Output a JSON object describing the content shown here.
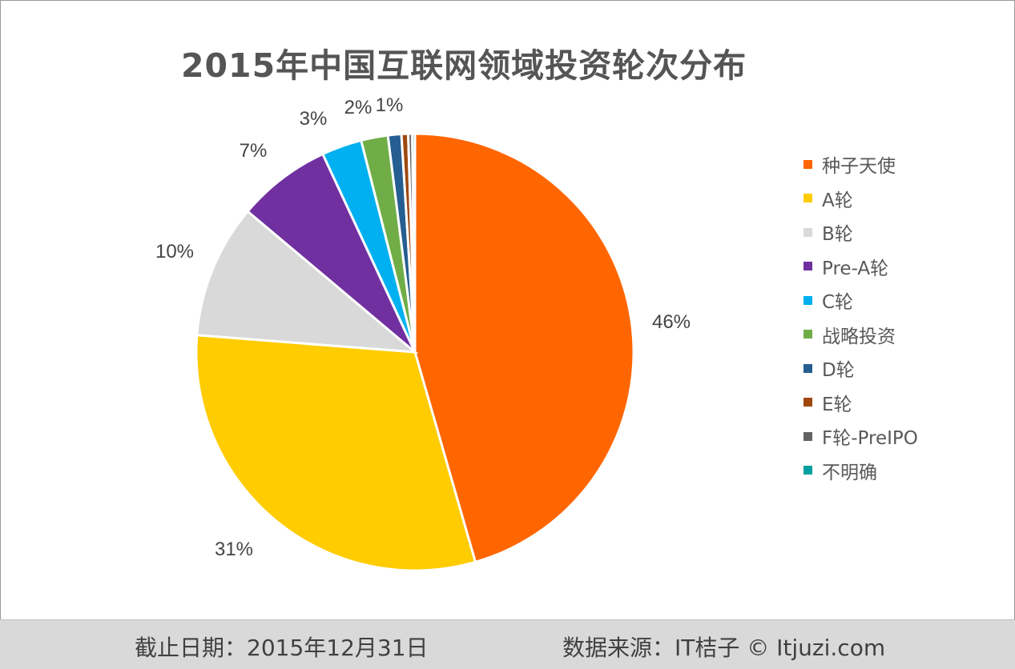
{
  "chart_data": {
    "type": "pie",
    "title": "2015年中国互联网领域投资轮次分布",
    "categories": [
      "种子天使",
      "A轮",
      "B轮",
      "Pre-A轮",
      "C轮",
      "战略投资",
      "D轮",
      "E轮",
      "F轮-PreIPO",
      "不明确"
    ],
    "values": [
      46,
      31,
      10,
      7,
      3,
      2,
      1,
      0.5,
      0.3,
      0.2
    ],
    "data_labels": [
      "46%",
      "31%",
      "10%",
      "7%",
      "3%",
      "2%",
      "1%",
      "",
      "",
      ""
    ],
    "colors": [
      "#FF6600",
      "#FFCC00",
      "#D9D9D9",
      "#7030A0",
      "#00B0F0",
      "#70AD47",
      "#255E91",
      "#9E480E",
      "#636363",
      "#00A0A0"
    ],
    "legend_position": "right",
    "start_angle": "12 o'clock, clockwise"
  },
  "footer": {
    "date": "截止日期：2015年12月31日",
    "source": "数据来源：IT桔子 © Itjuzi.com"
  }
}
